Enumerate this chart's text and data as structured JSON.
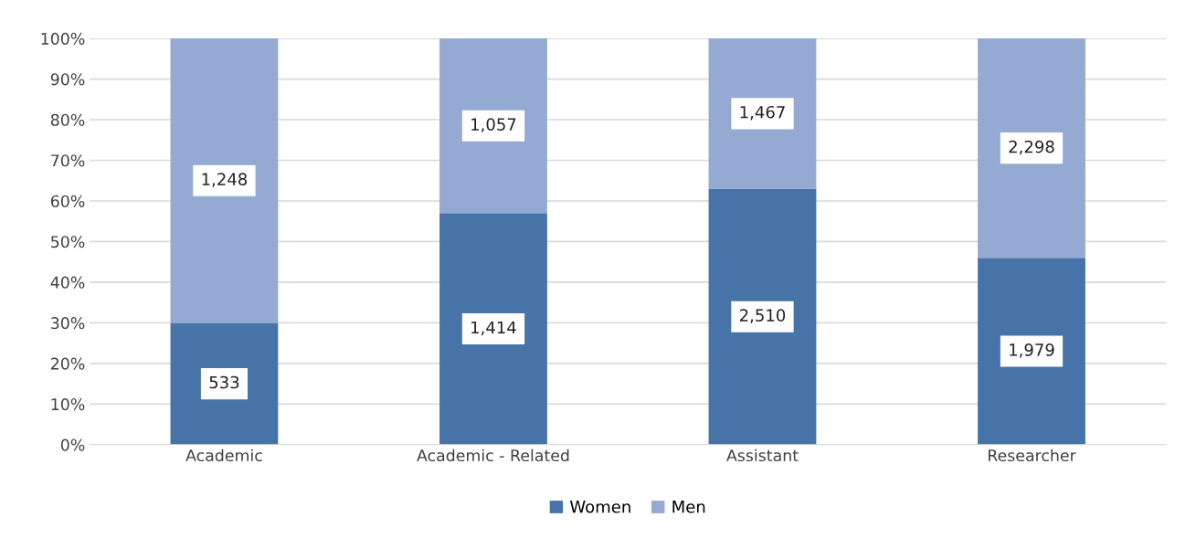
{
  "chart_data": {
    "type": "bar",
    "stacked": true,
    "categories": [
      "Academic",
      "Academic - Related",
      "Assistant",
      "Researcher"
    ],
    "series": [
      {
        "name": "Women",
        "color": "#4674a8",
        "values": [
          30,
          57,
          63,
          46
        ]
      },
      {
        "name": "Men",
        "color": "#94aad2",
        "values": [
          70,
          43,
          37,
          54
        ]
      }
    ],
    "annotations": [
      "533",
      "1,414",
      "2,510",
      "1,979",
      "1,248",
      "1,057",
      "1,467",
      "2,298"
    ],
    "ylim": [
      0,
      100
    ],
    "yticks": [
      {
        "value": 0,
        "label": "0%"
      },
      {
        "value": 10,
        "label": "10%"
      },
      {
        "value": 20,
        "label": "20%"
      },
      {
        "value": 30,
        "label": "30%"
      },
      {
        "value": 40,
        "label": "40%"
      },
      {
        "value": 50,
        "label": "50%"
      },
      {
        "value": 60,
        "label": "60%"
      },
      {
        "value": 70,
        "label": "70%"
      },
      {
        "value": 80,
        "label": "80%"
      },
      {
        "value": 90,
        "label": "90%"
      },
      {
        "value": 100,
        "label": "100%"
      }
    ],
    "grid": "y",
    "legend": "bottom"
  }
}
